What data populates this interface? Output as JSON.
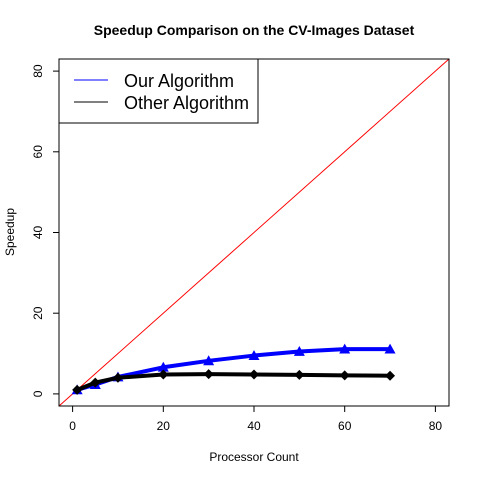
{
  "chart_data": {
    "type": "line",
    "title": "Speedup Comparison on the CV-Images Dataset",
    "xlabel": "Processor Count",
    "ylabel": "Speedup",
    "xlim": [
      -3,
      83
    ],
    "ylim": [
      -3,
      83
    ],
    "x_ticks": [
      "0",
      "20",
      "40",
      "60",
      "80"
    ],
    "y_ticks": [
      "0",
      "20",
      "40",
      "60",
      "80"
    ],
    "legend_position": "top-left",
    "reference_line": {
      "slope": 1,
      "intercept": 0,
      "color": "#ff0000"
    },
    "series": [
      {
        "name": "Our Algorithm",
        "color": "#0000ff",
        "marker": "triangle",
        "x": [
          1,
          5,
          10,
          20,
          30,
          40,
          50,
          60,
          70
        ],
        "y": [
          1,
          2.3,
          4.2,
          6.6,
          8.2,
          9.5,
          10.5,
          11.1,
          11.1
        ]
      },
      {
        "name": "Other Algorithm",
        "color": "#000000",
        "marker": "diamond",
        "x": [
          1,
          5,
          10,
          20,
          30,
          40,
          50,
          60,
          70
        ],
        "y": [
          1,
          2.8,
          4,
          4.8,
          4.9,
          4.8,
          4.7,
          4.6,
          4.5
        ]
      }
    ]
  }
}
